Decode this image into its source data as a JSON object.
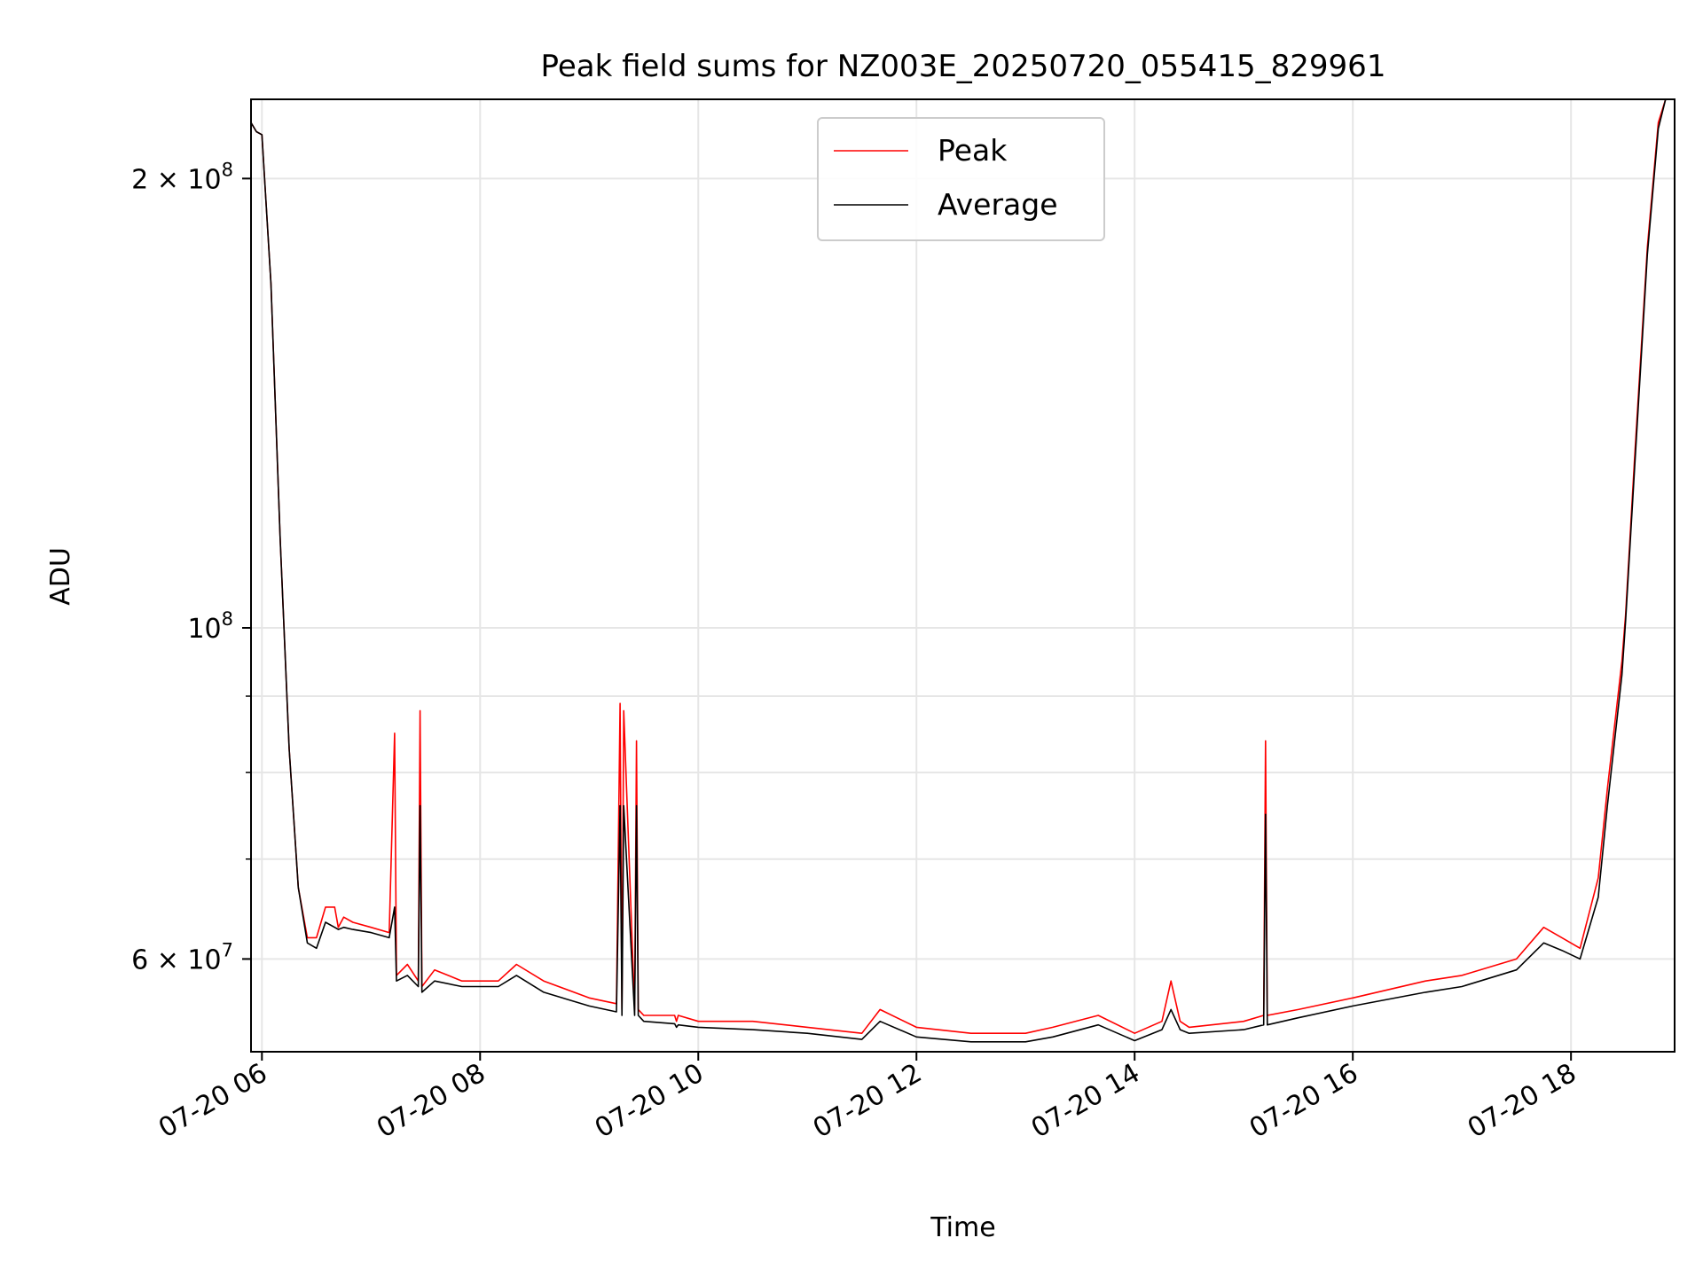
{
  "chart_data": {
    "type": "line",
    "title": "Peak field sums for NZ003E_20250720_055415_829961",
    "xlabel": "Time",
    "ylabel": "ADU",
    "yscale": "log",
    "xlim": [
      "2025-07-20 05:54",
      "2025-07-20 18:57"
    ],
    "ylim": [
      52000000,
      226000000
    ],
    "grid": true,
    "legend": "upper center",
    "xticks": [
      {
        "t": "2025-07-20 06:00",
        "label": "07-20 06"
      },
      {
        "t": "2025-07-20 08:00",
        "label": "07-20 08"
      },
      {
        "t": "2025-07-20 10:00",
        "label": "07-20 10"
      },
      {
        "t": "2025-07-20 12:00",
        "label": "07-20 12"
      },
      {
        "t": "2025-07-20 14:00",
        "label": "07-20 14"
      },
      {
        "t": "2025-07-20 16:00",
        "label": "07-20 16"
      },
      {
        "t": "2025-07-20 18:00",
        "label": "07-20 18"
      }
    ],
    "yticks_major": [
      {
        "v": 60000000,
        "base": "6 × 10",
        "exp": "7"
      },
      {
        "v": 100000000,
        "base": "10",
        "exp": "8"
      },
      {
        "v": 200000000,
        "base": "2 × 10",
        "exp": "8"
      }
    ],
    "yticks_minor": [
      70000000,
      80000000,
      90000000
    ],
    "series": [
      {
        "name": "Peak",
        "color": "#ff0000",
        "x": [
          "2025-07-20 05:54",
          "2025-07-20 05:57",
          "2025-07-20 06:00",
          "2025-07-20 06:05",
          "2025-07-20 06:10",
          "2025-07-20 06:15",
          "2025-07-20 06:20",
          "2025-07-20 06:25",
          "2025-07-20 06:30",
          "2025-07-20 06:35",
          "2025-07-20 06:40",
          "2025-07-20 06:42",
          "2025-07-20 06:45",
          "2025-07-20 06:50",
          "2025-07-20 07:00",
          "2025-07-20 07:10",
          "2025-07-20 07:13",
          "2025-07-20 07:14",
          "2025-07-20 07:20",
          "2025-07-20 07:26",
          "2025-07-20 07:27",
          "2025-07-20 07:28",
          "2025-07-20 07:35",
          "2025-07-20 07:50",
          "2025-07-20 08:10",
          "2025-07-20 08:20",
          "2025-07-20 08:35",
          "2025-07-20 09:00",
          "2025-07-20 09:15",
          "2025-07-20 09:17",
          "2025-07-20 09:18",
          "2025-07-20 09:19",
          "2025-07-20 09:25",
          "2025-07-20 09:26",
          "2025-07-20 09:27",
          "2025-07-20 09:30",
          "2025-07-20 09:47",
          "2025-07-20 09:48",
          "2025-07-20 09:49",
          "2025-07-20 10:00",
          "2025-07-20 10:30",
          "2025-07-20 11:00",
          "2025-07-20 11:30",
          "2025-07-20 11:40",
          "2025-07-20 12:00",
          "2025-07-20 12:30",
          "2025-07-20 13:00",
          "2025-07-20 13:15",
          "2025-07-20 13:40",
          "2025-07-20 14:00",
          "2025-07-20 14:15",
          "2025-07-20 14:20",
          "2025-07-20 14:25",
          "2025-07-20 14:30",
          "2025-07-20 15:00",
          "2025-07-20 15:11",
          "2025-07-20 15:12",
          "2025-07-20 15:13",
          "2025-07-20 15:30",
          "2025-07-20 16:00",
          "2025-07-20 16:40",
          "2025-07-20 17:00",
          "2025-07-20 17:30",
          "2025-07-20 17:45",
          "2025-07-20 17:55",
          "2025-07-20 18:05",
          "2025-07-20 18:15",
          "2025-07-20 18:20",
          "2025-07-20 18:28",
          "2025-07-20 18:30",
          "2025-07-20 18:35",
          "2025-07-20 18:42",
          "2025-07-20 18:48",
          "2025-07-20 18:52",
          "2025-07-20 18:57"
        ],
        "y": [
          218000000,
          215000000,
          214000000,
          170000000,
          115000000,
          83000000,
          67000000,
          62000000,
          62000000,
          65000000,
          65000000,
          63000000,
          64000000,
          63500000,
          63000000,
          62500000,
          85000000,
          58500000,
          59500000,
          58000000,
          88000000,
          57500000,
          59000000,
          58000000,
          58000000,
          59500000,
          58000000,
          56500000,
          56000000,
          89000000,
          55500000,
          88000000,
          55500000,
          84000000,
          55500000,
          55000000,
          55000000,
          54500000,
          55000000,
          54500000,
          54500000,
          54000000,
          53500000,
          55500000,
          54000000,
          53500000,
          53500000,
          54000000,
          55000000,
          53500000,
          54500000,
          58000000,
          54500000,
          54000000,
          54500000,
          55000000,
          84000000,
          55000000,
          55500000,
          56500000,
          58000000,
          58500000,
          60000000,
          63000000,
          62000000,
          61000000,
          68000000,
          78000000,
          95000000,
          102000000,
          130000000,
          180000000,
          218000000,
          226000000,
          226000000
        ]
      },
      {
        "name": "Average",
        "color": "#000000",
        "x": [
          "2025-07-20 05:54",
          "2025-07-20 05:57",
          "2025-07-20 06:00",
          "2025-07-20 06:05",
          "2025-07-20 06:10",
          "2025-07-20 06:15",
          "2025-07-20 06:20",
          "2025-07-20 06:25",
          "2025-07-20 06:30",
          "2025-07-20 06:35",
          "2025-07-20 06:40",
          "2025-07-20 06:42",
          "2025-07-20 06:45",
          "2025-07-20 06:50",
          "2025-07-20 07:00",
          "2025-07-20 07:10",
          "2025-07-20 07:13",
          "2025-07-20 07:14",
          "2025-07-20 07:20",
          "2025-07-20 07:26",
          "2025-07-20 07:27",
          "2025-07-20 07:28",
          "2025-07-20 07:35",
          "2025-07-20 07:50",
          "2025-07-20 08:10",
          "2025-07-20 08:20",
          "2025-07-20 08:35",
          "2025-07-20 09:00",
          "2025-07-20 09:15",
          "2025-07-20 09:17",
          "2025-07-20 09:18",
          "2025-07-20 09:19",
          "2025-07-20 09:25",
          "2025-07-20 09:26",
          "2025-07-20 09:27",
          "2025-07-20 09:30",
          "2025-07-20 09:47",
          "2025-07-20 09:48",
          "2025-07-20 09:49",
          "2025-07-20 10:00",
          "2025-07-20 10:30",
          "2025-07-20 11:00",
          "2025-07-20 11:30",
          "2025-07-20 11:40",
          "2025-07-20 12:00",
          "2025-07-20 12:30",
          "2025-07-20 13:00",
          "2025-07-20 13:15",
          "2025-07-20 13:40",
          "2025-07-20 14:00",
          "2025-07-20 14:15",
          "2025-07-20 14:20",
          "2025-07-20 14:25",
          "2025-07-20 14:30",
          "2025-07-20 15:00",
          "2025-07-20 15:11",
          "2025-07-20 15:12",
          "2025-07-20 15:13",
          "2025-07-20 15:30",
          "2025-07-20 16:00",
          "2025-07-20 16:40",
          "2025-07-20 17:00",
          "2025-07-20 17:30",
          "2025-07-20 17:45",
          "2025-07-20 17:55",
          "2025-07-20 18:05",
          "2025-07-20 18:15",
          "2025-07-20 18:20",
          "2025-07-20 18:28",
          "2025-07-20 18:30",
          "2025-07-20 18:35",
          "2025-07-20 18:42",
          "2025-07-20 18:48",
          "2025-07-20 18:52",
          "2025-07-20 18:57"
        ],
        "y": [
          218000000,
          215000000,
          214000000,
          170000000,
          115000000,
          83000000,
          67000000,
          61500000,
          61000000,
          63500000,
          63000000,
          62800000,
          63000000,
          62800000,
          62500000,
          62000000,
          65000000,
          58000000,
          58500000,
          57500000,
          76000000,
          57000000,
          58000000,
          57500000,
          57500000,
          58500000,
          57000000,
          55800000,
          55300000,
          76000000,
          55000000,
          76000000,
          55000000,
          76000000,
          55000000,
          54500000,
          54300000,
          54000000,
          54200000,
          54000000,
          53800000,
          53500000,
          53000000,
          54500000,
          53200000,
          52800000,
          52800000,
          53200000,
          54200000,
          52900000,
          53800000,
          55500000,
          53800000,
          53500000,
          53800000,
          54200000,
          75000000,
          54200000,
          54800000,
          55800000,
          57000000,
          57500000,
          59000000,
          61500000,
          60800000,
          60000000,
          66000000,
          76000000,
          93000000,
          101000000,
          128000000,
          178000000,
          216000000,
          226000000,
          226000000
        ]
      }
    ]
  }
}
